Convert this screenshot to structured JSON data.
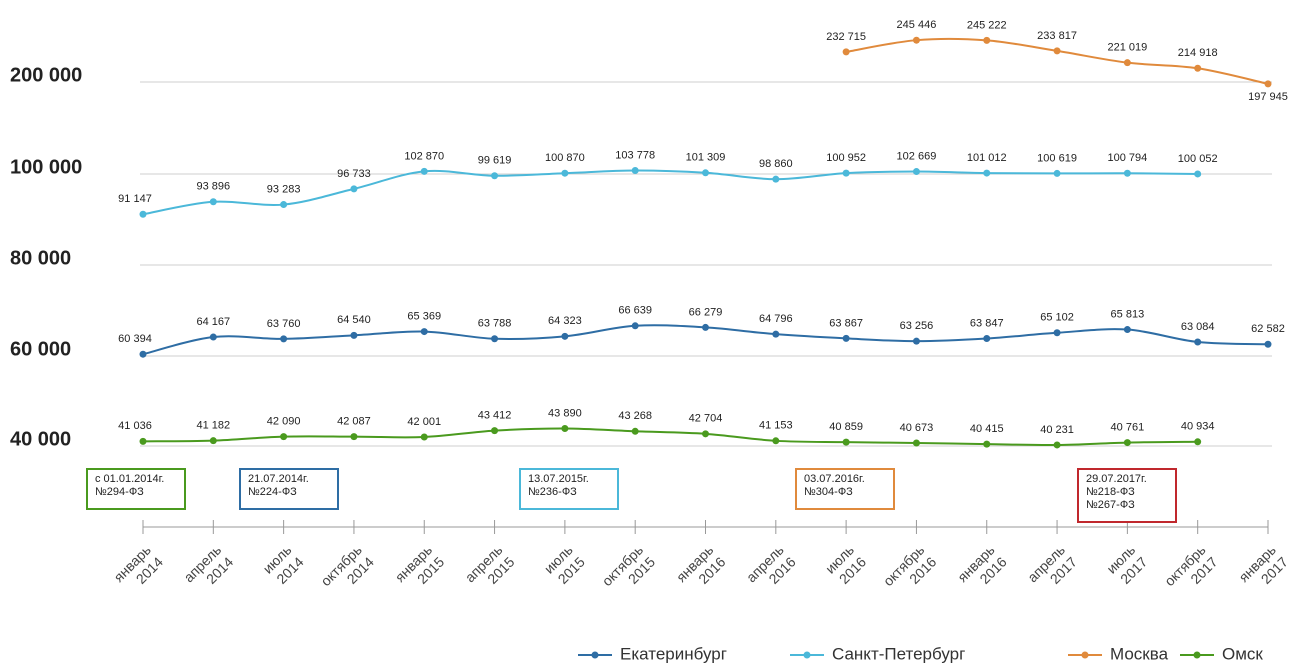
{
  "chart_data": {
    "type": "line",
    "categories": [
      [
        "январь",
        "2014"
      ],
      [
        "апрель",
        "2014"
      ],
      [
        "июль",
        "2014"
      ],
      [
        "октябрь",
        "2014"
      ],
      [
        "январь",
        "2015"
      ],
      [
        "апрель",
        "2015"
      ],
      [
        "июль",
        "2015"
      ],
      [
        "октябрь",
        "2015"
      ],
      [
        "январь",
        "2016"
      ],
      [
        "апрель",
        "2016"
      ],
      [
        "июль",
        "2016"
      ],
      [
        "октябрь",
        "2016"
      ],
      [
        "январь",
        "2016"
      ],
      [
        "апрель",
        "2017"
      ],
      [
        "июль",
        "2017"
      ],
      [
        "октябрь",
        "2017"
      ],
      [
        "январь",
        "2017"
      ]
    ],
    "ylim": [
      40000,
      200000
    ],
    "yticks": [
      {
        "value": 40000,
        "label": "40 000"
      },
      {
        "value": 60000,
        "label": "60 000"
      },
      {
        "value": 80000,
        "label": "80 000"
      },
      {
        "value": 100000,
        "label": "100 000"
      },
      {
        "value": 200000,
        "label": "200 000"
      }
    ],
    "grid": true,
    "series": [
      {
        "name": "Екатеринбург",
        "color": "#2e6da4",
        "values": [
          60394,
          64167,
          63760,
          64540,
          65369,
          63788,
          64323,
          66639,
          66279,
          64796,
          63867,
          63256,
          63847,
          65102,
          65813,
          63084,
          62582
        ],
        "value_labels": [
          "60 394",
          "64 167",
          "63 760",
          "64 540",
          "65 369",
          "63 788",
          "64 323",
          "66 639",
          "66 279",
          "64 796",
          "63 867",
          "63 256",
          "63 847",
          "65 102",
          "65 813",
          "63 084",
          "62 582"
        ]
      },
      {
        "name": "Санкт-Петербург",
        "color": "#4bb8d9",
        "values": [
          91147,
          93896,
          93283,
          96733,
          102870,
          99619,
          100870,
          103778,
          101309,
          98860,
          100952,
          102669,
          101012,
          100619,
          100794,
          100052,
          null
        ],
        "value_labels": [
          "91 147",
          "93 896",
          "93 283",
          "96 733",
          "102 870",
          "99 619",
          "100 870",
          "103 778",
          "101 309",
          "98 860",
          "100 952",
          "102 669",
          "101 012",
          "100 619",
          "100 794",
          "100 052",
          null
        ]
      },
      {
        "name": "Москва",
        "color": "#e08a3c",
        "values": [
          null,
          null,
          null,
          null,
          null,
          null,
          null,
          null,
          null,
          null,
          232715,
          245446,
          245222,
          233817,
          221019,
          214918,
          197945
        ],
        "value_labels": [
          null,
          null,
          null,
          null,
          null,
          null,
          null,
          null,
          null,
          null,
          "232 715",
          "245 446",
          "245 222",
          "233 817",
          "221 019",
          "214 918",
          "197 945"
        ]
      },
      {
        "name": "Омск",
        "color": "#4a9a1e",
        "values": [
          41036,
          41182,
          42090,
          42087,
          42001,
          43412,
          43890,
          43268,
          42704,
          41153,
          40859,
          40673,
          40415,
          40231,
          40761,
          40934,
          null
        ],
        "value_labels": [
          "41 036",
          "41 182",
          "42 090",
          "42 087",
          "42 001",
          "43 412",
          "43 890",
          "43 268",
          "42 704",
          "41 153",
          "40 859",
          "40 673",
          "40 415",
          "40 231",
          "40 761",
          "40 934",
          null
        ]
      }
    ],
    "annotations": [
      {
        "lines": [
          "с 01.01.2014г.",
          "№294-ФЗ"
        ],
        "color": "#4a9a1e"
      },
      {
        "lines": [
          "21.07.2014г.",
          "№224-ФЗ"
        ],
        "color": "#2e6da4"
      },
      {
        "lines": [
          "13.07.2015г.",
          "№236-ФЗ"
        ],
        "color": "#4bb8d9"
      },
      {
        "lines": [
          "03.07.2016г.",
          "№304-ФЗ"
        ],
        "color": "#e08a3c"
      },
      {
        "lines": [
          "29.07.2017г.",
          "№218-ФЗ",
          "№267-ФЗ"
        ],
        "color": "#c0282d"
      }
    ]
  }
}
